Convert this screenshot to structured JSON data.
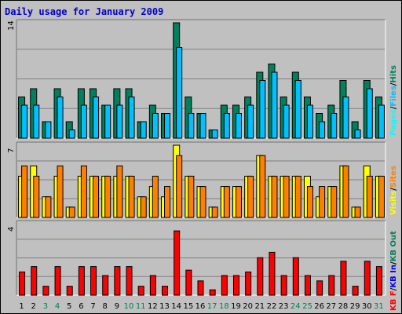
{
  "chart_data": [
    {
      "type": "bar",
      "title": "Daily usage for January 2009",
      "panel": "hits-files-pages",
      "ymax_label": "14",
      "ylim": [
        0,
        14
      ],
      "legend": [
        "Pages",
        "Files",
        "Hits"
      ],
      "legend_separator": "/",
      "categories": [
        "1",
        "2",
        "3",
        "4",
        "5",
        "6",
        "7",
        "8",
        "9",
        "10",
        "11",
        "12",
        "13",
        "14",
        "15",
        "16",
        "17",
        "18",
        "19",
        "20",
        "21",
        "22",
        "23",
        "24",
        "25",
        "26",
        "27",
        "28",
        "29",
        "30",
        "31"
      ],
      "weekend_categories": [
        "3",
        "4",
        "10",
        "11",
        "17",
        "18",
        "24",
        "25",
        "31"
      ],
      "series": [
        {
          "name": "Hits",
          "values": [
            5,
            6,
            2,
            6,
            2,
            6,
            6,
            4,
            6,
            6,
            2,
            4,
            3,
            14,
            5,
            3,
            1,
            4,
            4,
            5,
            8,
            9,
            5,
            8,
            5,
            3,
            4,
            7,
            2,
            7,
            5
          ]
        },
        {
          "name": "Files",
          "values": [
            4,
            4,
            2,
            5,
            1,
            4,
            5,
            4,
            4,
            5,
            2,
            3,
            3,
            11,
            3,
            3,
            1,
            3,
            3,
            4,
            7,
            8,
            4,
            7,
            4,
            2,
            3,
            5,
            1,
            6,
            4
          ]
        },
        {
          "name": "Pages",
          "values": [
            0,
            0,
            0,
            0,
            0,
            0,
            0,
            0,
            0,
            0,
            0,
            0,
            0,
            0,
            0,
            0,
            0,
            0,
            0,
            0,
            0,
            0,
            0,
            0,
            0,
            0,
            0,
            0,
            0,
            0,
            0
          ]
        }
      ]
    },
    {
      "type": "bar",
      "panel": "visits-sites",
      "ymax_label": "7",
      "ylim": [
        0,
        7
      ],
      "legend": [
        "Visits",
        "Sites"
      ],
      "legend_separator": "/",
      "series": [
        {
          "name": "Visits",
          "values": [
            4,
            5,
            2,
            4,
            1,
            4,
            4,
            4,
            4,
            4,
            2,
            3,
            2,
            7,
            4,
            3,
            1,
            3,
            3,
            4,
            6,
            4,
            4,
            4,
            4,
            2,
            3,
            5,
            1,
            5,
            4
          ]
        },
        {
          "name": "Sites",
          "values": [
            5,
            4,
            2,
            5,
            1,
            5,
            4,
            4,
            5,
            4,
            2,
            4,
            3,
            6,
            4,
            3,
            1,
            3,
            3,
            4,
            6,
            4,
            4,
            4,
            3,
            3,
            3,
            5,
            1,
            4,
            4
          ]
        }
      ]
    },
    {
      "type": "bar",
      "panel": "kbytes",
      "ymax_label": "4",
      "ylim": [
        0,
        4
      ],
      "legend": [
        "KB F",
        "KB In",
        "KB Out"
      ],
      "legend_separator": "/",
      "series": [
        {
          "name": "KB F",
          "values": [
            1.3,
            1.6,
            0.5,
            1.6,
            0.5,
            1.6,
            1.6,
            1.1,
            1.6,
            1.6,
            0.5,
            1.1,
            0.5,
            3.6,
            1.4,
            0.8,
            0.3,
            1.1,
            1.1,
            1.3,
            2.1,
            2.4,
            1.1,
            2.1,
            1.1,
            0.8,
            1.1,
            1.9,
            0.5,
            1.9,
            1.6
          ]
        }
      ]
    }
  ],
  "colors": {
    "hits": "#00805c",
    "files": "#00c0ff",
    "pages": "#00ffff",
    "visits": "#ffff00",
    "sites": "#ff8000",
    "kbytes": "#ff0000",
    "kb_in": "#0000ff",
    "kb_out": "#00805c",
    "title": "#0000cc",
    "panel_bg": "#c0c0c0",
    "weekday_label": "#000000",
    "weekend_label": "#00805c"
  }
}
